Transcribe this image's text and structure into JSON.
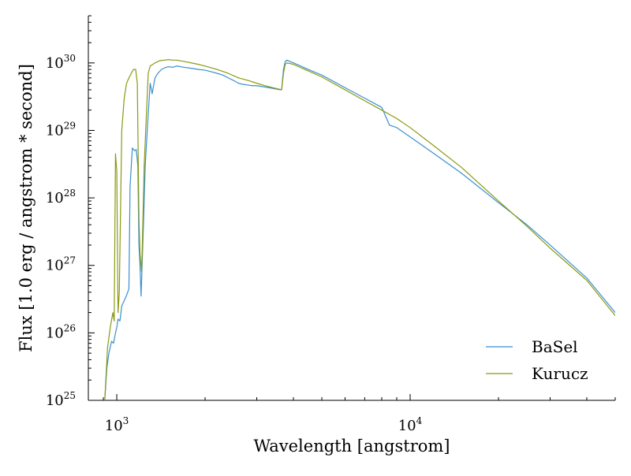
{
  "chart_data": {
    "type": "line",
    "title": "",
    "xlabel": "Wavelength [angstrom]",
    "ylabel": "Flux [1.0 erg / angstrom * second]",
    "x_scale": "log",
    "y_scale": "log",
    "xlim": [
      800,
      50000
    ],
    "ylim": [
      1e+25,
      5e+30
    ],
    "x_ticks": [
      {
        "value": 1000,
        "base": "10",
        "exp": "3"
      },
      {
        "value": 10000,
        "base": "10",
        "exp": "4"
      }
    ],
    "y_ticks": [
      {
        "value": 1e+25,
        "base": "10",
        "exp": "25"
      },
      {
        "value": 1e+26,
        "base": "10",
        "exp": "26"
      },
      {
        "value": 1e+27,
        "base": "10",
        "exp": "27"
      },
      {
        "value": 1e+28,
        "base": "10",
        "exp": "28"
      },
      {
        "value": 1e+29,
        "base": "10",
        "exp": "29"
      },
      {
        "value": 1e+30,
        "base": "10",
        "exp": "30"
      }
    ],
    "grid": false,
    "legend_position": "lower-right",
    "series": [
      {
        "name": "BaSel",
        "color": "#3a8fd1",
        "points": [
          [
            910,
            1e+25
          ],
          [
            925,
            3e+25
          ],
          [
            940,
            5e+25
          ],
          [
            960,
            7.5e+25
          ],
          [
            975,
            7e+25
          ],
          [
            990,
            1e+26
          ],
          [
            1000,
            1.2e+26
          ],
          [
            1010,
            1.6e+26
          ],
          [
            1025,
            1.5e+26
          ],
          [
            1040,
            2.5e+26
          ],
          [
            1060,
            3e+26
          ],
          [
            1080,
            3.6e+26
          ],
          [
            1100,
            4.5e+26
          ],
          [
            1110,
            1.5e+28
          ],
          [
            1130,
            5.5e+28
          ],
          [
            1150,
            5e+28
          ],
          [
            1165,
            5.2e+28
          ],
          [
            1180,
            3e+28
          ],
          [
            1190,
            2e+27
          ],
          [
            1200,
            1e+27
          ],
          [
            1210,
            3.5e+26
          ],
          [
            1220,
            1e+27
          ],
          [
            1235,
            5e+27
          ],
          [
            1250,
            3e+28
          ],
          [
            1270,
            1e+29
          ],
          [
            1290,
            3e+29
          ],
          [
            1300,
            5e+29
          ],
          [
            1320,
            3.5e+29
          ],
          [
            1350,
            6e+29
          ],
          [
            1380,
            7e+29
          ],
          [
            1420,
            8e+29
          ],
          [
            1460,
            8.5e+29
          ],
          [
            1500,
            8.8e+29
          ],
          [
            1550,
            8.6e+29
          ],
          [
            1600,
            9e+29
          ],
          [
            1700,
            8.6e+29
          ],
          [
            1800,
            8.3e+29
          ],
          [
            1900,
            8e+29
          ],
          [
            2000,
            7.8e+29
          ],
          [
            2100,
            7.4e+29
          ],
          [
            2200,
            7e+29
          ],
          [
            2300,
            6.6e+29
          ],
          [
            2400,
            6e+29
          ],
          [
            2500,
            5.5e+29
          ],
          [
            2600,
            5e+29
          ],
          [
            2700,
            4.8e+29
          ],
          [
            2800,
            4.7e+29
          ],
          [
            2900,
            4.6e+29
          ],
          [
            3000,
            4.6e+29
          ],
          [
            3200,
            4.4e+29
          ],
          [
            3400,
            4.2e+29
          ],
          [
            3600,
            4e+29
          ],
          [
            3647,
            4e+29
          ],
          [
            3700,
            8e+29
          ],
          [
            3750,
            1.05e+30
          ],
          [
            3800,
            1.1e+30
          ],
          [
            3900,
            1.05e+30
          ],
          [
            4000,
            1e+30
          ],
          [
            4500,
            8e+29
          ],
          [
            5000,
            6.6e+29
          ],
          [
            6000,
            4.3e+29
          ],
          [
            7000,
            3e+29
          ],
          [
            8000,
            2.2e+29
          ],
          [
            8500,
            1.2e+29
          ],
          [
            9000,
            1.1e+29
          ],
          [
            10000,
            8e+28
          ],
          [
            12000,
            4.6e+28
          ],
          [
            15000,
            2.3e+28
          ],
          [
            20000,
            8.5e+27
          ],
          [
            25000,
            4e+27
          ],
          [
            30000,
            2e+27
          ],
          [
            40000,
            6.5e+26
          ],
          [
            50000,
            2e+26
          ]
        ]
      },
      {
        "name": "Kurucz",
        "color": "#8a9a12",
        "points": [
          [
            910,
            1e+25
          ],
          [
            930,
            6e+25
          ],
          [
            950,
            1.2e+26
          ],
          [
            970,
            2e+26
          ],
          [
            980,
            1.5e+26
          ],
          [
            990,
            4.5e+28
          ],
          [
            1000,
            2.5e+28
          ],
          [
            1010,
            2e+26
          ],
          [
            1020,
            4e+26
          ],
          [
            1040,
            1e+29
          ],
          [
            1060,
            3e+29
          ],
          [
            1080,
            5e+29
          ],
          [
            1100,
            6e+29
          ],
          [
            1120,
            7e+29
          ],
          [
            1140,
            8e+29
          ],
          [
            1160,
            8e+29
          ],
          [
            1175,
            5e+29
          ],
          [
            1190,
            5e+27
          ],
          [
            1200,
            1.5e+27
          ],
          [
            1210,
            1e+27
          ],
          [
            1215,
            8e+26
          ],
          [
            1220,
            1.5e+27
          ],
          [
            1240,
            3e+28
          ],
          [
            1260,
            1.5e+29
          ],
          [
            1280,
            7e+29
          ],
          [
            1300,
            9e+29
          ],
          [
            1350,
            1e+30
          ],
          [
            1400,
            1.08e+30
          ],
          [
            1450,
            1.1e+30
          ],
          [
            1500,
            1.12e+30
          ],
          [
            1550,
            1.1e+30
          ],
          [
            1600,
            1.1e+30
          ],
          [
            1700,
            1.05e+30
          ],
          [
            1800,
            1e+30
          ],
          [
            1900,
            9.5e+29
          ],
          [
            2000,
            9e+29
          ],
          [
            2200,
            8e+29
          ],
          [
            2400,
            7e+29
          ],
          [
            2600,
            6e+29
          ],
          [
            2800,
            5.5e+29
          ],
          [
            3000,
            5e+29
          ],
          [
            3200,
            4.6e+29
          ],
          [
            3400,
            4.3e+29
          ],
          [
            3647,
            4e+29
          ],
          [
            3700,
            7e+29
          ],
          [
            3750,
            9.5e+29
          ],
          [
            3800,
            1e+30
          ],
          [
            3900,
            9.8e+29
          ],
          [
            4000,
            9.5e+29
          ],
          [
            4500,
            7.6e+29
          ],
          [
            5000,
            6.2e+29
          ],
          [
            6000,
            4e+29
          ],
          [
            7000,
            2.75e+29
          ],
          [
            8000,
            2e+29
          ],
          [
            9000,
            1.5e+29
          ],
          [
            10000,
            1.1e+29
          ],
          [
            12000,
            6e+28
          ],
          [
            15000,
            2.8e+28
          ],
          [
            20000,
            9e+27
          ],
          [
            25000,
            3.8e+27
          ],
          [
            30000,
            1.8e+27
          ],
          [
            40000,
            6e+26
          ],
          [
            50000,
            1.8e+26
          ]
        ]
      }
    ]
  }
}
